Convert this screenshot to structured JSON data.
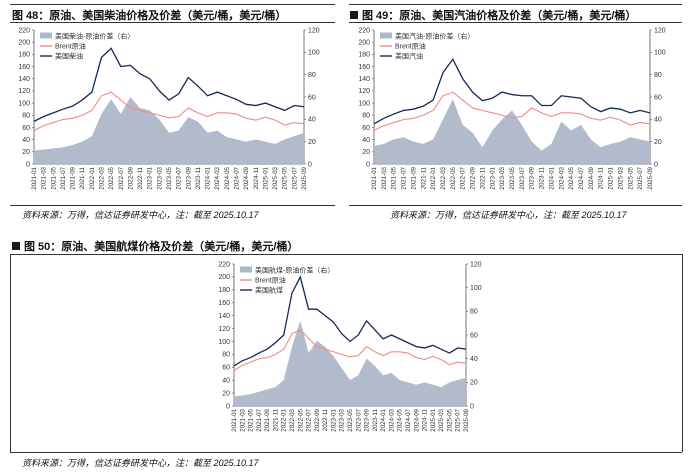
{
  "figures": [
    {
      "id": "fig48",
      "title": "图 48：原油、美国柴油价格及价差（美元/桶，美元/桶）",
      "source": "资料来源：万得，信达证券研发中心，注：截至 2025.10.17"
    },
    {
      "id": "fig49",
      "title": "图 49：原油、美国汽油价格及价差（美元/桶，美元/桶）",
      "source": "资料来源：万得，信达证券研发中心，注：截至 2025.10.17"
    },
    {
      "id": "fig50",
      "title": "图 50：原油、美国航煤价格及价差（美元/桶，美元/桶）",
      "source": "资料来源：万得，信达证券研发中心，注：截至 2025.10.17"
    }
  ],
  "colors": {
    "spread": "#aeb7c9",
    "brent": "#f28a8a",
    "product": "#16285a",
    "axis": "#555555"
  },
  "chart_data": [
    {
      "type": "area",
      "legend_position": "top-left",
      "grid": false,
      "xlabel": "",
      "ylabel": "",
      "x": [
        "2021-01",
        "2021-03",
        "2021-05",
        "2021-07",
        "2021-09",
        "2021-11",
        "2022-01",
        "2022-03",
        "2022-05",
        "2022-07",
        "2022-09",
        "2022-11",
        "2023-01",
        "2023-03",
        "2023-05",
        "2023-07",
        "2023-09",
        "2023-11",
        "2024-01",
        "2024-03",
        "2024-05",
        "2024-07",
        "2024-09",
        "2024-11",
        "2025-01",
        "2025-03",
        "2025-05",
        "2025-07",
        "2025-09"
      ],
      "ylim_left": [
        0,
        220
      ],
      "yticks_left": [
        0,
        20,
        40,
        60,
        80,
        100,
        120,
        140,
        160,
        180,
        200,
        220
      ],
      "ylim_right": [
        0,
        120
      ],
      "yticks_right": [
        0,
        20,
        40,
        60,
        80,
        100,
        120
      ],
      "series": [
        {
          "name": "美国柴油-原油价差（右）",
          "axis": "right",
          "kind": "area",
          "values": [
            12,
            13,
            14,
            15,
            17,
            20,
            25,
            45,
            58,
            45,
            60,
            50,
            48,
            40,
            28,
            30,
            42,
            38,
            28,
            30,
            24,
            22,
            20,
            22,
            20,
            18,
            22,
            25,
            28
          ]
        },
        {
          "name": "Brent原油",
          "axis": "left",
          "kind": "line",
          "values": [
            55,
            63,
            68,
            73,
            75,
            80,
            88,
            112,
            118,
            105,
            92,
            88,
            84,
            80,
            76,
            78,
            92,
            84,
            78,
            84,
            84,
            82,
            75,
            72,
            77,
            72,
            64,
            68,
            66
          ]
        },
        {
          "name": "美国柴油",
          "axis": "left",
          "kind": "line",
          "values": [
            70,
            78,
            84,
            90,
            95,
            105,
            118,
            175,
            190,
            160,
            162,
            148,
            140,
            120,
            105,
            115,
            142,
            128,
            112,
            118,
            112,
            106,
            98,
            96,
            100,
            94,
            88,
            96,
            94
          ]
        }
      ]
    },
    {
      "type": "area",
      "legend_position": "top-left",
      "grid": false,
      "xlabel": "",
      "ylabel": "",
      "x": [
        "2021-01",
        "2021-03",
        "2021-05",
        "2021-07",
        "2021-09",
        "2021-11",
        "2022-01",
        "2022-03",
        "2022-05",
        "2022-07",
        "2022-09",
        "2022-11",
        "2023-01",
        "2023-03",
        "2023-05",
        "2023-07",
        "2023-09",
        "2023-11",
        "2024-01",
        "2024-03",
        "2024-05",
        "2024-07",
        "2024-09",
        "2024-11",
        "2025-01",
        "2025-03",
        "2025-05",
        "2025-07",
        "2025-09"
      ],
      "ylim_left": [
        0,
        220
      ],
      "yticks_left": [
        0,
        20,
        40,
        60,
        80,
        100,
        120,
        140,
        160,
        180,
        200,
        220
      ],
      "ylim_right": [
        0,
        120
      ],
      "yticks_right": [
        0,
        20,
        40,
        60,
        80,
        100,
        120
      ],
      "series": [
        {
          "name": "美国汽油-原油价差（右）",
          "axis": "right",
          "kind": "area",
          "values": [
            16,
            18,
            22,
            24,
            20,
            18,
            22,
            40,
            58,
            35,
            28,
            15,
            30,
            40,
            48,
            35,
            20,
            12,
            18,
            38,
            30,
            35,
            22,
            15,
            18,
            20,
            24,
            22,
            20
          ]
        },
        {
          "name": "Brent原油",
          "axis": "left",
          "kind": "line",
          "values": [
            55,
            63,
            68,
            73,
            75,
            80,
            88,
            112,
            118,
            105,
            92,
            88,
            84,
            80,
            76,
            78,
            92,
            84,
            78,
            84,
            84,
            82,
            75,
            72,
            77,
            72,
            64,
            68,
            66
          ]
        },
        {
          "name": "美国汽油",
          "axis": "left",
          "kind": "line",
          "values": [
            66,
            75,
            82,
            88,
            90,
            95,
            105,
            150,
            172,
            140,
            118,
            104,
            108,
            118,
            114,
            112,
            112,
            96,
            96,
            112,
            110,
            108,
            94,
            86,
            92,
            90,
            84,
            88,
            84
          ]
        }
      ]
    },
    {
      "type": "area",
      "legend_position": "top-left",
      "grid": false,
      "xlabel": "",
      "ylabel": "",
      "x": [
        "2021-01",
        "2021-03",
        "2021-05",
        "2021-07",
        "2021-09",
        "2021-11",
        "2022-01",
        "2022-03",
        "2022-05",
        "2022-07",
        "2022-09",
        "2022-11",
        "2023-01",
        "2023-03",
        "2023-05",
        "2023-07",
        "2023-09",
        "2023-11",
        "2024-01",
        "2024-03",
        "2024-05",
        "2024-07",
        "2024-09",
        "2024-11",
        "2025-01",
        "2025-03",
        "2025-05",
        "2025-07",
        "2025-09"
      ],
      "ylim_left": [
        0,
        220
      ],
      "yticks_left": [
        0,
        20,
        40,
        60,
        80,
        100,
        120,
        140,
        160,
        180,
        200,
        220
      ],
      "ylim_right": [
        0,
        120
      ],
      "yticks_right": [
        0,
        20,
        40,
        60,
        80,
        100,
        120
      ],
      "series": [
        {
          "name": "美国航煤-原油价差（右）",
          "axis": "right",
          "kind": "area",
          "values": [
            8,
            9,
            10,
            12,
            14,
            16,
            22,
            50,
            72,
            45,
            55,
            50,
            42,
            32,
            22,
            26,
            40,
            34,
            26,
            28,
            22,
            20,
            18,
            20,
            18,
            16,
            20,
            22,
            24
          ]
        },
        {
          "name": "Brent原油",
          "axis": "left",
          "kind": "line",
          "values": [
            55,
            63,
            68,
            73,
            75,
            80,
            88,
            112,
            118,
            105,
            92,
            88,
            84,
            80,
            76,
            78,
            92,
            84,
            78,
            84,
            84,
            82,
            75,
            72,
            77,
            72,
            64,
            68,
            66
          ]
        },
        {
          "name": "美国航煤",
          "axis": "left",
          "kind": "line",
          "values": [
            62,
            70,
            75,
            82,
            88,
            98,
            110,
            175,
            200,
            150,
            150,
            140,
            130,
            112,
            100,
            110,
            132,
            118,
            104,
            110,
            104,
            98,
            92,
            90,
            94,
            88,
            82,
            90,
            88
          ]
        }
      ]
    }
  ]
}
